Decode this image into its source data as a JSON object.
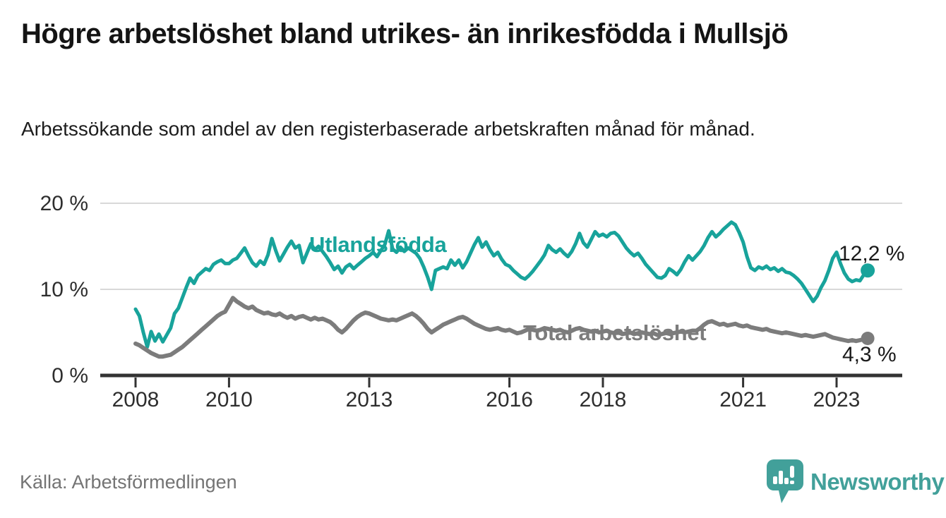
{
  "header": {
    "title": "Högre arbetslöshet bland utrikes- än inrikesfödda i Mullsjö",
    "subtitle": "Arbetssökande som andel av den registerbaserade arbetskraften månad för månad."
  },
  "chart_data": {
    "type": "line",
    "title": "Högre arbetslöshet bland utrikes- än inrikesfödda i Mullsjö",
    "subtitle": "Arbetssökande som andel av den registerbaserade arbetskraften månad för månad.",
    "unit": "%",
    "frequency": "monthly",
    "x_start_year": 2008,
    "x_start_month": 1,
    "x_ticks": [
      2008,
      2010,
      2013,
      2016,
      2018,
      2021,
      2023
    ],
    "y_ticks": [
      {
        "value": 0,
        "label": "0 %"
      },
      {
        "value": 10,
        "label": "10 %"
      },
      {
        "value": 20,
        "label": "20 %"
      }
    ],
    "ylim": [
      0,
      21
    ],
    "grid": "horizontal",
    "legend_position": "inline-labels",
    "axis_color": "#333333",
    "gridline_color": "#D8D8D8",
    "series": [
      {
        "name": "Utlandsfödda",
        "color": "#18A39B",
        "end_label": "12,2 %",
        "end_value": 12.2,
        "values": [
          7.7,
          6.9,
          5.0,
          3.3,
          5.1,
          4.0,
          4.8,
          3.9,
          4.7,
          5.5,
          7.2,
          7.8,
          9.0,
          10.2,
          11.3,
          10.7,
          11.6,
          12.0,
          12.4,
          12.2,
          12.9,
          13.2,
          13.4,
          13.0,
          13.0,
          13.4,
          13.6,
          14.2,
          14.8,
          13.9,
          13.1,
          12.7,
          13.3,
          12.9,
          14.0,
          15.9,
          14.5,
          13.3,
          14.1,
          14.9,
          15.6,
          14.8,
          15.1,
          13.1,
          14.2,
          15.3,
          14.6,
          15.0,
          14.4,
          13.8,
          13.1,
          12.3,
          12.7,
          11.9,
          12.6,
          12.9,
          12.4,
          12.8,
          13.2,
          13.6,
          13.9,
          14.3,
          13.8,
          14.5,
          15.2,
          16.8,
          14.7,
          14.3,
          14.9,
          14.4,
          14.8,
          14.5,
          14.2,
          13.6,
          12.6,
          11.4,
          10.0,
          12.2,
          12.4,
          12.6,
          12.4,
          13.4,
          12.8,
          13.4,
          12.5,
          13.2,
          14.2,
          15.2,
          16.0,
          14.9,
          15.5,
          14.6,
          13.9,
          14.3,
          13.5,
          12.9,
          12.7,
          12.2,
          11.8,
          11.4,
          11.2,
          11.6,
          12.1,
          12.7,
          13.3,
          14.0,
          15.1,
          14.6,
          14.3,
          14.7,
          14.2,
          13.8,
          14.4,
          15.3,
          16.5,
          15.4,
          14.9,
          15.8,
          16.7,
          16.2,
          16.4,
          16.1,
          16.5,
          16.6,
          16.2,
          15.5,
          14.8,
          14.3,
          13.9,
          14.2,
          13.6,
          12.9,
          12.4,
          11.9,
          11.4,
          11.3,
          11.6,
          12.4,
          12.1,
          11.7,
          12.3,
          13.2,
          13.9,
          13.4,
          13.9,
          14.4,
          15.1,
          16.0,
          16.7,
          16.1,
          16.5,
          17.0,
          17.4,
          17.8,
          17.5,
          16.6,
          15.5,
          13.8,
          12.5,
          12.2,
          12.6,
          12.4,
          12.7,
          12.3,
          12.5,
          12.1,
          12.4,
          12.0,
          11.9,
          11.6,
          11.2,
          10.7,
          10.0,
          9.3,
          8.6,
          9.2,
          10.2,
          11.0,
          12.2,
          13.6,
          14.3,
          13.0,
          11.9,
          11.2,
          10.9,
          11.1,
          11.0,
          11.7,
          12.2
        ]
      },
      {
        "name": "Total arbetslöshet",
        "color": "#7C7C7C",
        "end_label": "4,3 %",
        "end_value": 4.3,
        "values": [
          3.7,
          3.5,
          3.2,
          2.9,
          2.6,
          2.4,
          2.2,
          2.2,
          2.3,
          2.4,
          2.7,
          3.0,
          3.3,
          3.7,
          4.1,
          4.5,
          4.9,
          5.3,
          5.7,
          6.1,
          6.5,
          6.9,
          7.2,
          7.4,
          8.2,
          9.0,
          8.6,
          8.3,
          8.0,
          7.8,
          8.0,
          7.6,
          7.4,
          7.2,
          7.3,
          7.1,
          7.0,
          7.2,
          6.9,
          6.7,
          6.9,
          6.6,
          6.8,
          6.9,
          6.7,
          6.5,
          6.7,
          6.5,
          6.6,
          6.4,
          6.2,
          5.8,
          5.3,
          5.0,
          5.4,
          5.9,
          6.4,
          6.8,
          7.1,
          7.3,
          7.2,
          7.0,
          6.8,
          6.6,
          6.5,
          6.4,
          6.5,
          6.4,
          6.6,
          6.8,
          7.0,
          7.2,
          6.9,
          6.5,
          6.0,
          5.4,
          5.0,
          5.3,
          5.6,
          5.9,
          6.1,
          6.3,
          6.5,
          6.7,
          6.8,
          6.6,
          6.3,
          6.0,
          5.8,
          5.6,
          5.4,
          5.3,
          5.4,
          5.5,
          5.3,
          5.2,
          5.3,
          5.1,
          4.9,
          5.0,
          5.2,
          5.4,
          5.3,
          5.2,
          5.3,
          5.5,
          5.4,
          5.3,
          5.2,
          5.3,
          5.1,
          5.0,
          5.2,
          5.4,
          5.5,
          5.3,
          5.2,
          5.1,
          5.2,
          5.0,
          5.1,
          5.2,
          5.0,
          4.9,
          5.0,
          4.8,
          4.9,
          5.0,
          4.8,
          4.9,
          5.0,
          4.9,
          4.8,
          4.9,
          4.7,
          4.8,
          4.9,
          5.0,
          4.9,
          5.0,
          5.1,
          5.0,
          5.1,
          5.2,
          5.2,
          5.5,
          5.9,
          6.2,
          6.3,
          6.1,
          5.9,
          6.0,
          5.8,
          5.9,
          6.0,
          5.8,
          5.7,
          5.8,
          5.6,
          5.5,
          5.4,
          5.3,
          5.4,
          5.2,
          5.1,
          5.0,
          4.9,
          5.0,
          4.9,
          4.8,
          4.7,
          4.6,
          4.7,
          4.6,
          4.5,
          4.6,
          4.7,
          4.8,
          4.6,
          4.4,
          4.3,
          4.2,
          4.1,
          4.0,
          4.1,
          4.0,
          4.1,
          4.2,
          4.3
        ]
      }
    ]
  },
  "footer": {
    "source": "Källa: Arbetsförmedlingen",
    "brand": "Newsworthy"
  },
  "colors": {
    "accent_teal": "#18A39B",
    "line_gray": "#7C7C7C",
    "logo_teal": "#42A09A"
  }
}
